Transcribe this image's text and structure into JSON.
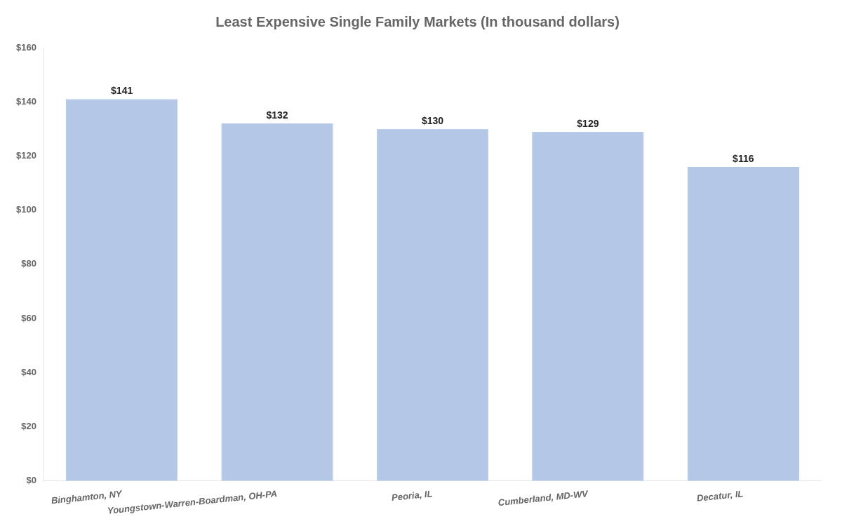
{
  "chart_data": {
    "type": "bar",
    "title": "Least Expensive Single Family Markets (In thousand dollars)",
    "categories": [
      "Binghamton, NY",
      "Youngstown-Warren-Boardman, OH-PA",
      "Peoria, IL",
      "Cumberland, MD-WV",
      "Decatur, IL"
    ],
    "values": [
      141,
      132,
      130,
      129,
      116
    ],
    "value_labels": [
      "$141",
      "$132",
      "$130",
      "$129",
      "$116"
    ],
    "data_labels": true,
    "color": "#b4c7e7",
    "ylim": [
      0,
      160
    ],
    "yticks": [
      {
        "value": 0,
        "label": "$0"
      },
      {
        "value": 20,
        "label": "$20"
      },
      {
        "value": 40,
        "label": "$40"
      },
      {
        "value": 60,
        "label": "$60"
      },
      {
        "value": 80,
        "label": "$80"
      },
      {
        "value": 100,
        "label": "$100"
      },
      {
        "value": 120,
        "label": "$120"
      },
      {
        "value": 140,
        "label": "$140"
      },
      {
        "value": 160,
        "label": "$160"
      }
    ],
    "grid": false
  }
}
